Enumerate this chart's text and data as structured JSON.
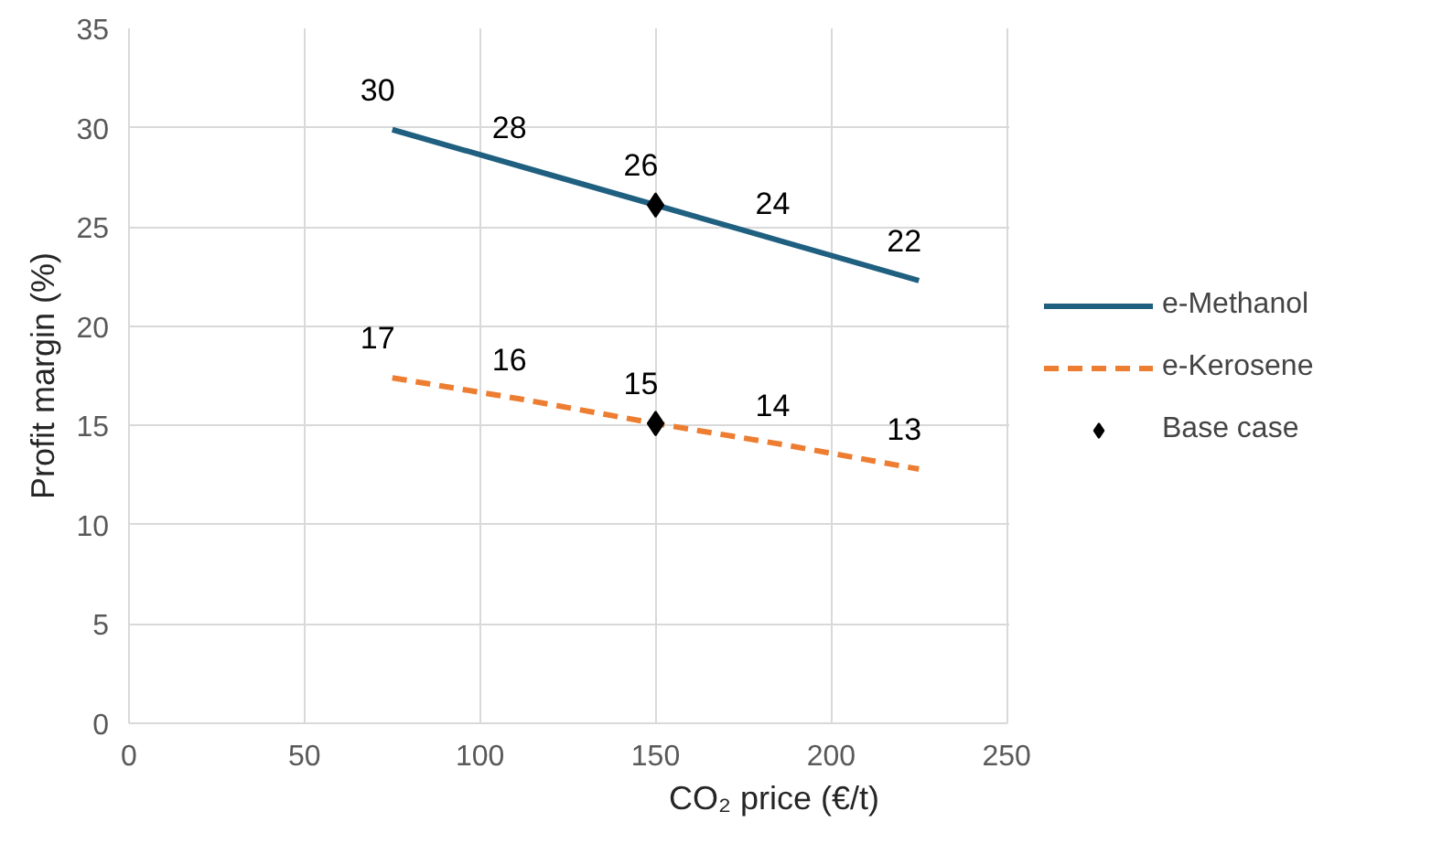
{
  "chart_data": {
    "type": "line",
    "xlabel": "CO₂ price (€/t)",
    "ylabel": "Profit margin (%)",
    "x": [
      75,
      112.5,
      150,
      187.5,
      225
    ],
    "xlim": [
      0,
      250
    ],
    "xticks": [
      0,
      50,
      100,
      150,
      200,
      250
    ],
    "ylim": [
      0,
      35
    ],
    "yticks": [
      0,
      5,
      10,
      15,
      20,
      25,
      30,
      35
    ],
    "grid": true,
    "legend": "right",
    "marker": "none",
    "series": [
      {
        "name": "e-Methanol",
        "color": "#1f5f80",
        "line_style": "solid",
        "values": [
          29.9,
          28.0,
          26.1,
          24.2,
          22.3
        ],
        "value_labels": [
          "30",
          "28",
          "26",
          "24",
          "22"
        ]
      },
      {
        "name": "e-Kerosene",
        "color": "#ed7d31",
        "line_style": "dashed",
        "values": [
          17.4,
          16.3,
          15.1,
          14.0,
          12.8
        ],
        "value_labels": [
          "17",
          "16",
          "15",
          "14",
          "13"
        ]
      },
      {
        "name": "Base case",
        "type": "scatter",
        "marker": "diamond",
        "color": "#000000",
        "x": [
          150,
          150
        ],
        "values": [
          26.1,
          15.1
        ]
      }
    ]
  }
}
